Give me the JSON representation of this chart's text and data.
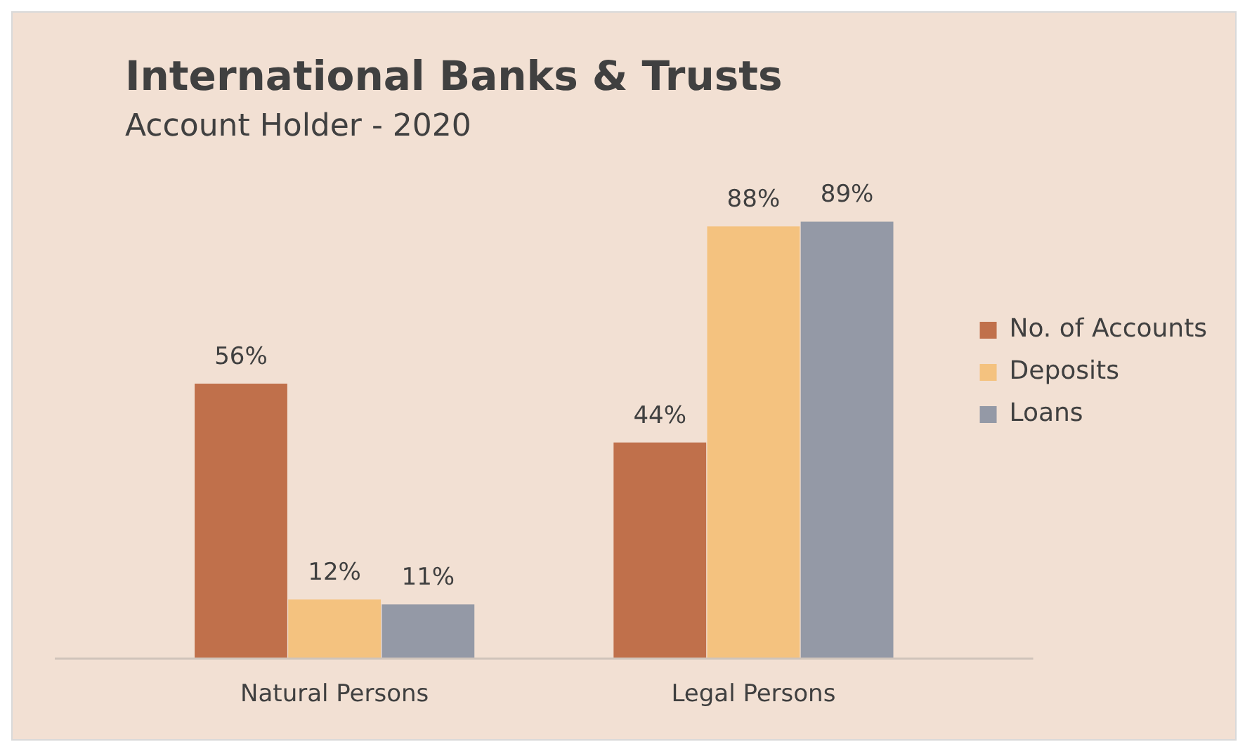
{
  "chart_data": {
    "type": "bar",
    "title": "International Banks & Trusts",
    "subtitle": "Account Holder - 2020",
    "categories": [
      "Natural Persons",
      "Legal Persons"
    ],
    "series": [
      {
        "name": "No. of Accounts",
        "color": "#c0704b",
        "values": [
          56,
          44
        ],
        "value_labels": [
          "56%",
          "44%"
        ]
      },
      {
        "name": "Deposits",
        "color": "#f4c27f",
        "values": [
          12,
          88
        ],
        "value_labels": [
          "12%",
          "88%"
        ]
      },
      {
        "name": "Loans",
        "color": "#9499a6",
        "values": [
          11,
          89
        ],
        "value_labels": [
          "11%",
          "89%"
        ]
      }
    ],
    "legend": "right",
    "grid": false
  }
}
